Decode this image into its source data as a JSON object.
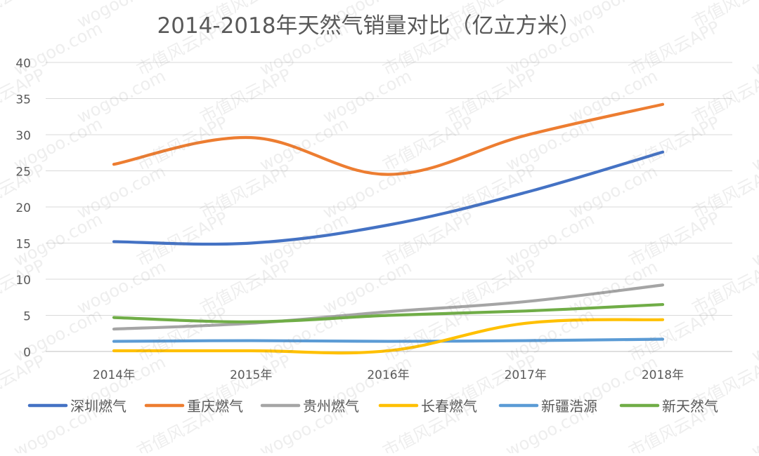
{
  "chart_data": {
    "type": "line",
    "title": "2014-2018年天然气销量对比（亿立方米）",
    "xlabel": "",
    "ylabel": "",
    "categories": [
      "2014年",
      "2015年",
      "2016年",
      "2017年",
      "2018年"
    ],
    "ylim": [
      0,
      40
    ],
    "yticks": [
      "0",
      "5",
      "10",
      "15",
      "20",
      "25",
      "30",
      "35",
      "40"
    ],
    "grid": true,
    "legend_position": "bottom",
    "series": [
      {
        "name": "深圳燃气",
        "color": "#4472C4",
        "values": [
          15.2,
          15.0,
          17.5,
          22.0,
          27.6
        ]
      },
      {
        "name": "重庆燃气",
        "color": "#ED7D31",
        "values": [
          25.9,
          29.6,
          24.5,
          29.9,
          34.2
        ]
      },
      {
        "name": "贵州燃气",
        "color": "#A5A5A5",
        "values": [
          3.1,
          3.9,
          5.5,
          6.9,
          9.2
        ]
      },
      {
        "name": "长春燃气",
        "color": "#FFC000",
        "values": [
          0.1,
          0.1,
          0.1,
          3.9,
          4.4
        ]
      },
      {
        "name": "新疆浩源",
        "color": "#5B9BD5",
        "values": [
          1.4,
          1.5,
          1.4,
          1.5,
          1.7
        ]
      },
      {
        "name": "新天然气",
        "color": "#70AD47",
        "values": [
          4.7,
          4.1,
          5.0,
          5.6,
          6.5
        ]
      }
    ],
    "watermarks": [
      "市值风云APP",
      "wogoo.com"
    ]
  }
}
